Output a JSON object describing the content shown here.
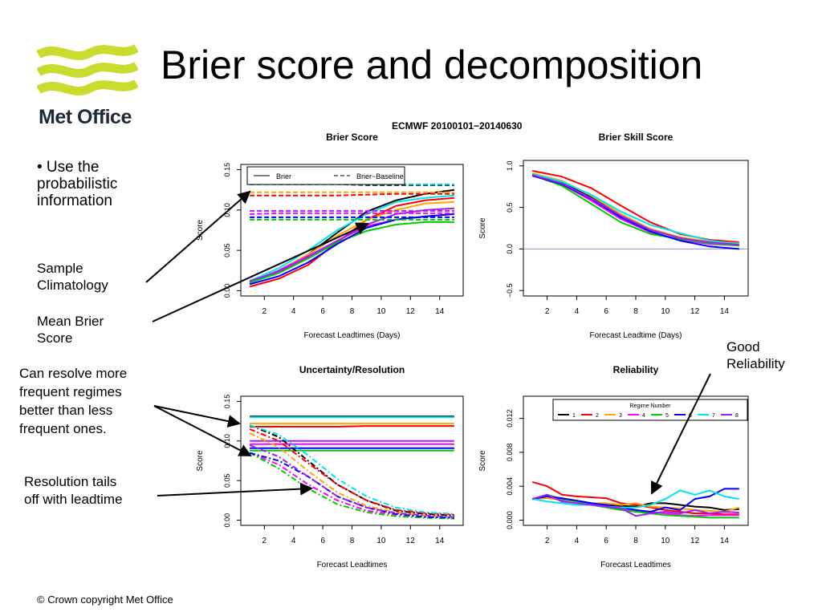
{
  "slide": {
    "title": "Brier score and decomposition",
    "logo_text": "Met Office",
    "footer": "© Crown copyright   Met Office",
    "figure_title": "ECMWF  20100101−20140630",
    "notes": {
      "bullet": [
        "• Use the",
        "probabilistic",
        "information"
      ],
      "sample_clim": [
        "Sample",
        "Climatology"
      ],
      "mean_brier": [
        "Mean Brier",
        "Score"
      ],
      "good_rel": [
        "Good",
        "Reliability"
      ],
      "resolve": [
        "Can resolve more",
        "frequent regimes",
        "better than less",
        "frequent ones."
      ],
      "res_tails": [
        "Resolution tails",
        "off with leadtime"
      ]
    }
  },
  "colors": [
    "#000000",
    "#ff0000",
    "#ffa500",
    "#ff00ff",
    "#00cc00",
    "#0000ff",
    "#00e5ee",
    "#a020f0"
  ],
  "chart_data": [
    {
      "type": "line",
      "title": "Brier Score",
      "xlabel": "Forecast Leadtimes (Days)",
      "ylabel": "Score",
      "xlim": [
        1,
        15
      ],
      "ylim": [
        0,
        0.15
      ],
      "xticks": [
        2,
        4,
        6,
        8,
        10,
        12,
        14
      ],
      "yticks": [
        0,
        0.05,
        0.1,
        0.15
      ],
      "ytick_labels": [
        "0.00",
        "0.05",
        "0.10",
        "0.15"
      ],
      "grid": false,
      "legend": {
        "position": "top",
        "entries": [
          {
            "label": "Brier",
            "style": "solid"
          },
          {
            "label": "Brier−Baseline",
            "style": "dashed"
          }
        ]
      },
      "x": [
        1,
        3,
        5,
        7,
        9,
        11,
        13,
        15
      ],
      "series": [
        {
          "style": "solid",
          "values": [
            0.01,
            0.025,
            0.045,
            0.072,
            0.098,
            0.112,
            0.12,
            0.125
          ]
        },
        {
          "style": "solid",
          "values": [
            0.005,
            0.015,
            0.032,
            0.06,
            0.088,
            0.105,
            0.112,
            0.115
          ]
        },
        {
          "style": "solid",
          "values": [
            0.01,
            0.025,
            0.045,
            0.068,
            0.088,
            0.1,
            0.108,
            0.11
          ]
        },
        {
          "style": "solid",
          "values": [
            0.01,
            0.025,
            0.043,
            0.062,
            0.08,
            0.088,
            0.092,
            0.095
          ]
        },
        {
          "style": "solid",
          "values": [
            0.01,
            0.022,
            0.04,
            0.06,
            0.074,
            0.082,
            0.085,
            0.085
          ]
        },
        {
          "style": "solid",
          "values": [
            0.008,
            0.018,
            0.035,
            0.058,
            0.078,
            0.088,
            0.092,
            0.095
          ]
        },
        {
          "style": "solid",
          "values": [
            0.012,
            0.028,
            0.05,
            0.075,
            0.095,
            0.11,
            0.115,
            0.118
          ]
        },
        {
          "style": "solid",
          "values": [
            0.012,
            0.024,
            0.042,
            0.062,
            0.082,
            0.095,
            0.1,
            0.102
          ]
        },
        {
          "style": "dashed",
          "values": [
            0.132,
            0.132,
            0.132,
            0.132,
            0.131,
            0.131,
            0.131,
            0.131
          ]
        },
        {
          "style": "dashed",
          "values": [
            0.118,
            0.118,
            0.118,
            0.118,
            0.119,
            0.12,
            0.12,
            0.12
          ]
        },
        {
          "style": "dashed",
          "values": [
            0.122,
            0.122,
            0.122,
            0.122,
            0.122,
            0.122,
            0.122,
            0.122
          ]
        },
        {
          "style": "dashed",
          "values": [
            0.095,
            0.096,
            0.096,
            0.096,
            0.096,
            0.096,
            0.096,
            0.096
          ]
        },
        {
          "style": "dashed",
          "values": [
            0.088,
            0.088,
            0.088,
            0.088,
            0.088,
            0.088,
            0.088,
            0.088
          ]
        },
        {
          "style": "dashed",
          "values": [
            0.091,
            0.091,
            0.091,
            0.091,
            0.091,
            0.091,
            0.091,
            0.091
          ]
        },
        {
          "style": "dashed",
          "values": [
            0.132,
            0.132,
            0.132,
            0.132,
            0.132,
            0.132,
            0.132,
            0.132
          ]
        },
        {
          "style": "dashed",
          "values": [
            0.099,
            0.099,
            0.099,
            0.099,
            0.099,
            0.099,
            0.099,
            0.099
          ]
        }
      ]
    },
    {
      "type": "line",
      "title": "Brier Skill Score",
      "xlabel": "Forecast Leadtime (Days)",
      "ylabel": "Score",
      "xlim": [
        1,
        15
      ],
      "ylim": [
        -0.5,
        1.0
      ],
      "xticks": [
        2,
        4,
        6,
        8,
        10,
        12,
        14
      ],
      "yticks": [
        -0.5,
        0,
        0.5,
        1.0
      ],
      "ytick_labels": [
        "−0.5",
        "0.0",
        "0.5",
        "1.0"
      ],
      "grid": false,
      "reference_line": 0,
      "x": [
        1,
        3,
        5,
        7,
        9,
        11,
        13,
        15
      ],
      "series": [
        {
          "values": [
            0.9,
            0.8,
            0.62,
            0.4,
            0.24,
            0.14,
            0.08,
            0.06
          ]
        },
        {
          "values": [
            0.94,
            0.87,
            0.73,
            0.52,
            0.32,
            0.18,
            0.11,
            0.08
          ]
        },
        {
          "values": [
            0.91,
            0.82,
            0.64,
            0.42,
            0.24,
            0.14,
            0.09,
            0.07
          ]
        },
        {
          "values": [
            0.9,
            0.78,
            0.58,
            0.36,
            0.2,
            0.11,
            0.06,
            0.04
          ]
        },
        {
          "values": [
            0.89,
            0.76,
            0.54,
            0.32,
            0.18,
            0.12,
            0.07,
            0.04
          ]
        },
        {
          "values": [
            0.88,
            0.78,
            0.6,
            0.38,
            0.21,
            0.1,
            0.03,
            0.0
          ]
        },
        {
          "values": [
            0.9,
            0.81,
            0.65,
            0.45,
            0.29,
            0.19,
            0.1,
            0.06
          ]
        },
        {
          "values": [
            0.89,
            0.79,
            0.61,
            0.4,
            0.23,
            0.13,
            0.08,
            0.05
          ]
        }
      ]
    },
    {
      "type": "line",
      "title": "Uncertainty/Resolution",
      "xlabel": "Forecast Leadtimes",
      "ylabel": "Score",
      "xlim": [
        1,
        15
      ],
      "ylim": [
        0,
        0.15
      ],
      "xticks": [
        2,
        4,
        6,
        8,
        10,
        12,
        14
      ],
      "yticks": [
        0,
        0.05,
        0.1,
        0.15
      ],
      "ytick_labels": [
        "0.00",
        "0.05",
        "0.10",
        "0.15"
      ],
      "grid": false,
      "x": [
        1,
        3,
        5,
        7,
        9,
        11,
        13,
        15
      ],
      "series": [
        {
          "style": "solid",
          "values": [
            0.131,
            0.131,
            0.131,
            0.131,
            0.131,
            0.131,
            0.131,
            0.131
          ]
        },
        {
          "style": "solid",
          "values": [
            0.118,
            0.118,
            0.118,
            0.118,
            0.119,
            0.119,
            0.119,
            0.119
          ]
        },
        {
          "style": "solid",
          "values": [
            0.122,
            0.122,
            0.122,
            0.122,
            0.122,
            0.122,
            0.122,
            0.122
          ]
        },
        {
          "style": "solid",
          "values": [
            0.096,
            0.096,
            0.096,
            0.096,
            0.096,
            0.096,
            0.096,
            0.096
          ]
        },
        {
          "style": "solid",
          "values": [
            0.088,
            0.088,
            0.088,
            0.088,
            0.088,
            0.088,
            0.088,
            0.088
          ]
        },
        {
          "style": "solid",
          "values": [
            0.091,
            0.091,
            0.091,
            0.091,
            0.091,
            0.091,
            0.091,
            0.091
          ]
        },
        {
          "style": "solid",
          "values": [
            0.13,
            0.13,
            0.13,
            0.13,
            0.13,
            0.13,
            0.13,
            0.13
          ]
        },
        {
          "style": "solid",
          "values": [
            0.1,
            0.1,
            0.1,
            0.1,
            0.1,
            0.1,
            0.1,
            0.1
          ]
        },
        {
          "style": "dashdot",
          "values": [
            0.12,
            0.105,
            0.075,
            0.045,
            0.025,
            0.012,
            0.008,
            0.006
          ]
        },
        {
          "style": "dashdot",
          "values": [
            0.115,
            0.1,
            0.072,
            0.045,
            0.025,
            0.013,
            0.009,
            0.007
          ]
        },
        {
          "style": "dashdot",
          "values": [
            0.11,
            0.092,
            0.062,
            0.035,
            0.018,
            0.01,
            0.006,
            0.004
          ]
        },
        {
          "style": "dashdot",
          "values": [
            0.085,
            0.07,
            0.045,
            0.025,
            0.012,
            0.007,
            0.004,
            0.003
          ]
        },
        {
          "style": "dashdot",
          "values": [
            0.085,
            0.065,
            0.04,
            0.02,
            0.01,
            0.005,
            0.003,
            0.002
          ]
        },
        {
          "style": "dashdot",
          "values": [
            0.085,
            0.075,
            0.055,
            0.03,
            0.016,
            0.008,
            0.004,
            0.003
          ]
        },
        {
          "style": "dashdot",
          "values": [
            0.12,
            0.108,
            0.082,
            0.052,
            0.03,
            0.016,
            0.01,
            0.008
          ]
        },
        {
          "style": "dashdot",
          "values": [
            0.095,
            0.08,
            0.055,
            0.03,
            0.016,
            0.009,
            0.006,
            0.004
          ]
        }
      ]
    },
    {
      "type": "line",
      "title": "Reliability",
      "xlabel": "Forecast Leadtimes",
      "ylabel": "Score",
      "xlim": [
        1,
        15
      ],
      "ylim": [
        0,
        0.014
      ],
      "xticks": [
        2,
        4,
        6,
        8,
        10,
        12,
        14
      ],
      "yticks": [
        0,
        0.004,
        0.008,
        0.012
      ],
      "ytick_labels": [
        "0.000",
        "0.004",
        "0.008",
        "0.012"
      ],
      "grid": false,
      "legend": {
        "position": "top",
        "title": "Regime Number",
        "entries": [
          "1",
          "2",
          "3",
          "4",
          "5",
          "6",
          "7",
          "8"
        ]
      },
      "x": [
        1,
        2,
        3,
        4,
        5,
        6,
        7,
        8,
        9,
        10,
        11,
        12,
        13,
        14,
        15
      ],
      "series": [
        {
          "name": "1",
          "values": [
            0.0025,
            0.0028,
            0.0025,
            0.0023,
            0.002,
            0.0018,
            0.0017,
            0.0016,
            0.002,
            0.002,
            0.0018,
            0.0016,
            0.0015,
            0.0012,
            0.0013
          ]
        },
        {
          "name": "2",
          "values": [
            0.0045,
            0.004,
            0.003,
            0.0028,
            0.0027,
            0.0026,
            0.002,
            0.0018,
            0.0015,
            0.0012,
            0.001,
            0.0008,
            0.0008,
            0.0007,
            0.0007
          ]
        },
        {
          "name": "3",
          "values": [
            0.0025,
            0.0026,
            0.0024,
            0.0022,
            0.002,
            0.002,
            0.0018,
            0.002,
            0.0016,
            0.0015,
            0.0014,
            0.0012,
            0.0011,
            0.001,
            0.0015
          ]
        },
        {
          "name": "4",
          "values": [
            0.0025,
            0.0028,
            0.0024,
            0.0023,
            0.002,
            0.0017,
            0.0013,
            0.001,
            0.001,
            0.0008,
            0.0006,
            0.0005,
            0.0006,
            0.0006,
            0.0006
          ]
        },
        {
          "name": "5",
          "values": [
            0.0025,
            0.003,
            0.0025,
            0.0022,
            0.0018,
            0.0015,
            0.0012,
            0.001,
            0.0008,
            0.0006,
            0.0005,
            0.0004,
            0.0003,
            0.0003,
            0.0003
          ]
        },
        {
          "name": "6",
          "values": [
            0.0025,
            0.0028,
            0.0026,
            0.0023,
            0.002,
            0.0018,
            0.0015,
            0.0012,
            0.001,
            0.0015,
            0.0012,
            0.0025,
            0.0028,
            0.0037,
            0.0037
          ]
        },
        {
          "name": "7",
          "values": [
            0.0025,
            0.0022,
            0.002,
            0.0018,
            0.0018,
            0.0016,
            0.0015,
            0.0015,
            0.0018,
            0.0025,
            0.0035,
            0.003,
            0.0035,
            0.0028,
            0.0025
          ]
        },
        {
          "name": "8",
          "values": [
            0.0025,
            0.003,
            0.0022,
            0.002,
            0.0018,
            0.0016,
            0.0014,
            0.0005,
            0.0008,
            0.001,
            0.0008,
            0.0012,
            0.0008,
            0.001,
            0.0009
          ]
        }
      ]
    }
  ]
}
